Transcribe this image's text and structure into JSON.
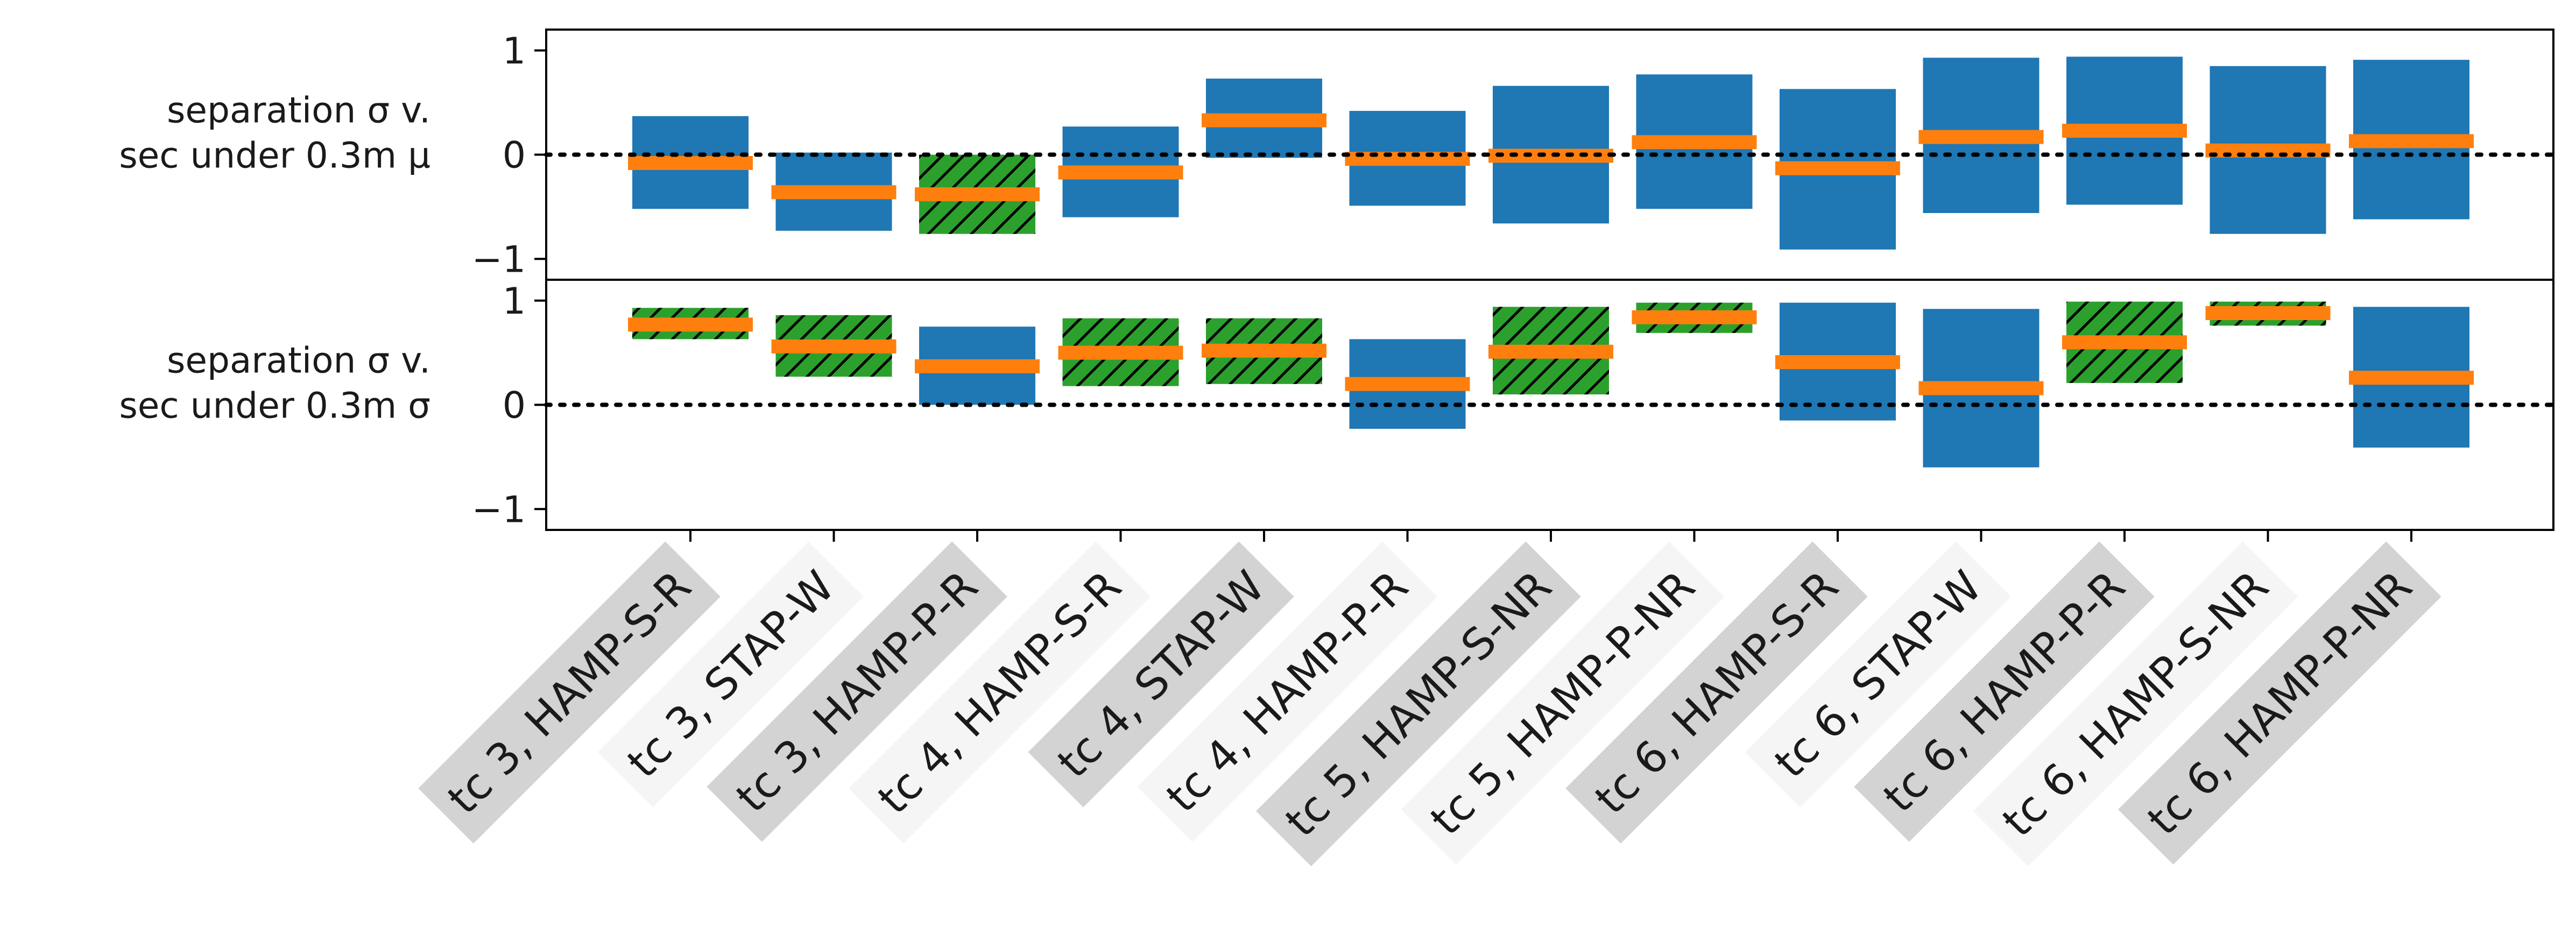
{
  "chart_data": {
    "type": "bar",
    "description_of_marks": "floating bars spanning [low, high] with an orange median line; hatched green when bar excludes zero",
    "categories": [
      "tc 3, HAMP-S-R",
      "tc 3, STAP-W",
      "tc 3, HAMP-P-R",
      "tc 4, HAMP-S-R",
      "tc 4, STAP-W",
      "tc 4, HAMP-P-R",
      "tc 5, HAMP-S-NR",
      "tc 5, HAMP-P-NR",
      "tc 6, HAMP-S-R",
      "tc 6, STAP-W",
      "tc 6, HAMP-P-R",
      "tc 6, HAMP-S-NR",
      "tc 6, HAMP-P-NR"
    ],
    "category_label_shading": [
      "gray",
      "light",
      "gray",
      "light",
      "gray",
      "light",
      "gray",
      "light",
      "gray",
      "light",
      "gray",
      "light",
      "gray"
    ],
    "colors": {
      "bar": "#1f77b4",
      "significant_bar": "#2ca02c",
      "median": "#ff7f0e",
      "label_gray": "#d3d3d3",
      "label_light": "#f5f5f5"
    },
    "panels": [
      {
        "ylabel_line1": "separation σ v.",
        "ylabel_line2": "sec under 0.3m μ",
        "ylim": [
          -1.2,
          1.2
        ],
        "yticks": [
          -1,
          0,
          1
        ],
        "ytick_labels": [
          "−1",
          "0",
          "1"
        ],
        "reference_line": 0,
        "bars": [
          {
            "low": -0.52,
            "high": 0.37,
            "median": -0.08,
            "significant": false
          },
          {
            "low": -0.73,
            "high": 0.02,
            "median": -0.36,
            "significant": false
          },
          {
            "low": -0.76,
            "high": 0.0,
            "median": -0.38,
            "significant": true
          },
          {
            "low": -0.6,
            "high": 0.27,
            "median": -0.17,
            "significant": false
          },
          {
            "low": -0.03,
            "high": 0.73,
            "median": 0.33,
            "significant": false
          },
          {
            "low": -0.49,
            "high": 0.42,
            "median": -0.04,
            "significant": false
          },
          {
            "low": -0.66,
            "high": 0.66,
            "median": -0.01,
            "significant": false
          },
          {
            "low": -0.52,
            "high": 0.77,
            "median": 0.12,
            "significant": false
          },
          {
            "low": -0.91,
            "high": 0.63,
            "median": -0.13,
            "significant": false
          },
          {
            "low": -0.56,
            "high": 0.93,
            "median": 0.17,
            "significant": false
          },
          {
            "low": -0.48,
            "high": 0.94,
            "median": 0.23,
            "significant": false
          },
          {
            "low": -0.76,
            "high": 0.85,
            "median": 0.04,
            "significant": false
          },
          {
            "low": -0.62,
            "high": 0.91,
            "median": 0.13,
            "significant": false
          }
        ]
      },
      {
        "ylabel_line1": "separation σ v.",
        "ylabel_line2": "sec under 0.3m σ",
        "ylim": [
          -1.2,
          1.2
        ],
        "yticks": [
          -1,
          0,
          1
        ],
        "ytick_labels": [
          "−1",
          "0",
          "1"
        ],
        "reference_line": 0,
        "bars": [
          {
            "low": 0.63,
            "high": 0.93,
            "median": 0.77,
            "significant": true
          },
          {
            "low": 0.27,
            "high": 0.86,
            "median": 0.56,
            "significant": true
          },
          {
            "low": 0.0,
            "high": 0.75,
            "median": 0.37,
            "significant": false
          },
          {
            "low": 0.18,
            "high": 0.83,
            "median": 0.5,
            "significant": true
          },
          {
            "low": 0.2,
            "high": 0.83,
            "median": 0.52,
            "significant": true
          },
          {
            "low": -0.23,
            "high": 0.63,
            "median": 0.2,
            "significant": false
          },
          {
            "low": 0.1,
            "high": 0.94,
            "median": 0.51,
            "significant": true
          },
          {
            "low": 0.69,
            "high": 0.98,
            "median": 0.84,
            "significant": true
          },
          {
            "low": -0.15,
            "high": 0.98,
            "median": 0.41,
            "significant": false
          },
          {
            "low": -0.6,
            "high": 0.92,
            "median": 0.16,
            "significant": false
          },
          {
            "low": 0.21,
            "high": 0.99,
            "median": 0.6,
            "significant": true
          },
          {
            "low": 0.76,
            "high": 0.99,
            "median": 0.88,
            "significant": true
          },
          {
            "low": -0.41,
            "high": 0.94,
            "median": 0.26,
            "significant": false
          }
        ]
      }
    ]
  }
}
